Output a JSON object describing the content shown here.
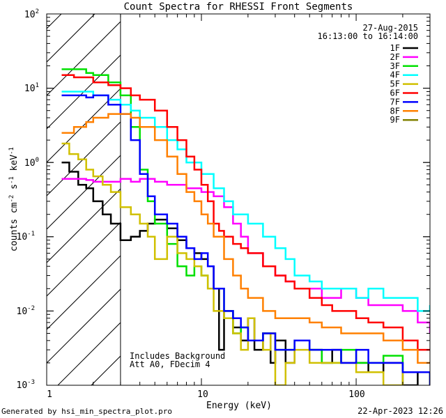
{
  "chart_data": {
    "type": "line",
    "title": "Count Spectra for RHESSI Front Segments",
    "xlabel": "Energy (keV)",
    "ylabel": "counts cm-2 s-1 keV-1",
    "xscale": "log",
    "yscale": "log",
    "xlim": [
      1,
      300
    ],
    "ylim": [
      0.001,
      100
    ],
    "x_tick_labels": [
      "1",
      "10",
      "100"
    ],
    "y_tick_labels": [
      "10-3",
      "10-2",
      "10-1",
      "100",
      "101",
      "102"
    ],
    "date": "27-Aug-2015",
    "time_range": "16:13:00 to 16:14:00",
    "annotations": [
      "Includes Background",
      "Att A0, FDecim 4"
    ],
    "shaded_region": [
      1,
      3
    ],
    "series": [
      {
        "name": "1F",
        "color": "#000000",
        "points": [
          [
            1.25,
            1.0
          ],
          [
            1.4,
            0.75
          ],
          [
            1.6,
            0.5
          ],
          [
            1.8,
            0.45
          ],
          [
            2.0,
            0.3
          ],
          [
            2.3,
            0.2
          ],
          [
            2.6,
            0.15
          ],
          [
            3.0,
            0.09
          ],
          [
            3.5,
            0.1
          ],
          [
            4.0,
            0.12
          ],
          [
            4.5,
            0.15
          ],
          [
            5.0,
            0.17
          ],
          [
            6.0,
            0.13
          ],
          [
            7.0,
            0.09
          ],
          [
            8.0,
            0.07
          ],
          [
            9.0,
            0.06
          ],
          [
            10.0,
            0.05
          ],
          [
            11.0,
            0.04
          ],
          [
            12.0,
            0.02
          ],
          [
            13.0,
            0.003
          ],
          [
            14.0,
            0.01
          ],
          [
            16.0,
            0.006
          ],
          [
            18.0,
            0.004
          ],
          [
            20.0,
            0.008
          ],
          [
            22.0,
            0.003
          ],
          [
            25.0,
            0.005
          ],
          [
            28.0,
            0.002
          ],
          [
            30.0,
            0.004
          ],
          [
            35.0,
            0.002
          ],
          [
            40.0,
            0.004
          ],
          [
            50.0,
            0.003
          ],
          [
            60.0,
            0.002
          ],
          [
            70.0,
            0.003
          ],
          [
            80.0,
            0.002
          ],
          [
            100.0,
            0.002
          ],
          [
            120.0,
            0.0015
          ],
          [
            150.0,
            0.002
          ],
          [
            200.0,
            0.001
          ],
          [
            250.0,
            0.0015
          ],
          [
            300.0,
            0.001
          ]
        ]
      },
      {
        "name": "2F",
        "color": "#ff00ff",
        "points": [
          [
            1.25,
            0.6
          ],
          [
            1.5,
            0.6
          ],
          [
            1.8,
            0.58
          ],
          [
            2.0,
            0.55
          ],
          [
            2.5,
            0.55
          ],
          [
            3.0,
            0.6
          ],
          [
            3.5,
            0.55
          ],
          [
            4.0,
            0.6
          ],
          [
            5.0,
            0.55
          ],
          [
            6.0,
            0.5
          ],
          [
            7.0,
            0.5
          ],
          [
            8.0,
            0.45
          ],
          [
            9.0,
            0.45
          ],
          [
            10.0,
            0.4
          ],
          [
            12.0,
            0.35
          ],
          [
            14.0,
            0.25
          ],
          [
            16.0,
            0.15
          ],
          [
            18.0,
            0.1
          ],
          [
            20.0,
            0.06
          ],
          [
            25.0,
            0.04
          ],
          [
            30.0,
            0.03
          ],
          [
            35.0,
            0.025
          ],
          [
            40.0,
            0.02
          ],
          [
            50.0,
            0.02
          ],
          [
            60.0,
            0.015
          ],
          [
            70.0,
            0.015
          ],
          [
            80.0,
            0.02
          ],
          [
            100.0,
            0.015
          ],
          [
            120.0,
            0.012
          ],
          [
            150.0,
            0.012
          ],
          [
            200.0,
            0.01
          ],
          [
            250.0,
            0.007
          ],
          [
            300.0,
            0.005
          ]
        ]
      },
      {
        "name": "3F",
        "color": "#00e000",
        "points": [
          [
            1.25,
            18.0
          ],
          [
            1.5,
            18.0
          ],
          [
            1.8,
            16.0
          ],
          [
            2.0,
            15.0
          ],
          [
            2.5,
            12.0
          ],
          [
            3.0,
            8.0
          ],
          [
            3.5,
            3.0
          ],
          [
            4.0,
            0.8
          ],
          [
            4.5,
            0.3
          ],
          [
            5.0,
            0.15
          ],
          [
            6.0,
            0.08
          ],
          [
            7.0,
            0.04
          ],
          [
            8.0,
            0.03
          ],
          [
            9.0,
            0.04
          ],
          [
            10.0,
            0.03
          ],
          [
            11.0,
            0.02
          ],
          [
            12.0,
            0.02
          ],
          [
            14.0,
            0.01
          ],
          [
            16.0,
            0.005
          ],
          [
            18.0,
            0.006
          ],
          [
            20.0,
            0.004
          ],
          [
            25.0,
            0.005
          ],
          [
            30.0,
            0.003
          ],
          [
            40.0,
            0.004
          ],
          [
            50.0,
            0.003
          ],
          [
            60.0,
            0.002
          ],
          [
            80.0,
            0.003
          ],
          [
            100.0,
            0.002
          ],
          [
            150.0,
            0.0025
          ],
          [
            200.0,
            0.0015
          ],
          [
            300.0,
            0.001
          ]
        ]
      },
      {
        "name": "4F",
        "color": "#00ffff",
        "points": [
          [
            1.25,
            9.0
          ],
          [
            1.5,
            9.0
          ],
          [
            2.0,
            8.0
          ],
          [
            2.5,
            7.0
          ],
          [
            3.0,
            6.0
          ],
          [
            3.5,
            5.0
          ],
          [
            4.0,
            4.0
          ],
          [
            5.0,
            3.0
          ],
          [
            6.0,
            2.0
          ],
          [
            7.0,
            1.5
          ],
          [
            8.0,
            1.0
          ],
          [
            10.0,
            0.7
          ],
          [
            12.0,
            0.45
          ],
          [
            14.0,
            0.3
          ],
          [
            16.0,
            0.2
          ],
          [
            20.0,
            0.15
          ],
          [
            25.0,
            0.1
          ],
          [
            30.0,
            0.07
          ],
          [
            35.0,
            0.05
          ],
          [
            40.0,
            0.03
          ],
          [
            50.0,
            0.025
          ],
          [
            60.0,
            0.02
          ],
          [
            70.0,
            0.02
          ],
          [
            80.0,
            0.02
          ],
          [
            100.0,
            0.015
          ],
          [
            120.0,
            0.02
          ],
          [
            150.0,
            0.015
          ],
          [
            200.0,
            0.015
          ],
          [
            250.0,
            0.01
          ],
          [
            300.0,
            0.012
          ]
        ]
      },
      {
        "name": "5F",
        "color": "#d0c000",
        "points": [
          [
            1.25,
            1.8
          ],
          [
            1.4,
            1.3
          ],
          [
            1.6,
            1.1
          ],
          [
            1.8,
            0.8
          ],
          [
            2.0,
            0.65
          ],
          [
            2.3,
            0.5
          ],
          [
            2.6,
            0.4
          ],
          [
            3.0,
            0.25
          ],
          [
            3.5,
            0.2
          ],
          [
            4.0,
            0.15
          ],
          [
            4.5,
            0.1
          ],
          [
            5.0,
            0.05
          ],
          [
            6.0,
            0.1
          ],
          [
            7.0,
            0.06
          ],
          [
            8.0,
            0.05
          ],
          [
            9.0,
            0.04
          ],
          [
            10.0,
            0.03
          ],
          [
            11.0,
            0.02
          ],
          [
            12.0,
            0.01
          ],
          [
            14.0,
            0.008
          ],
          [
            16.0,
            0.005
          ],
          [
            18.0,
            0.003
          ],
          [
            20.0,
            0.008
          ],
          [
            22.0,
            0.004
          ],
          [
            25.0,
            0.003
          ],
          [
            28.0,
            0.005
          ],
          [
            30.0,
            0.001
          ],
          [
            35.0,
            0.002
          ],
          [
            40.0,
            0.003
          ],
          [
            50.0,
            0.002
          ],
          [
            70.0,
            0.002
          ],
          [
            100.0,
            0.0015
          ],
          [
            150.0,
            0.001
          ],
          [
            200.0,
            0.0015
          ],
          [
            300.0,
            0.001
          ]
        ]
      },
      {
        "name": "6F",
        "color": "#ff0000",
        "points": [
          [
            1.25,
            15.0
          ],
          [
            1.5,
            14.0
          ],
          [
            2.0,
            12.0
          ],
          [
            2.5,
            11.0
          ],
          [
            3.0,
            10.0
          ],
          [
            3.5,
            8.0
          ],
          [
            4.0,
            7.0
          ],
          [
            5.0,
            5.0
          ],
          [
            6.0,
            3.0
          ],
          [
            7.0,
            2.0
          ],
          [
            8.0,
            1.2
          ],
          [
            9.0,
            0.8
          ],
          [
            10.0,
            0.5
          ],
          [
            11.0,
            0.3
          ],
          [
            12.0,
            0.15
          ],
          [
            13.0,
            0.12
          ],
          [
            14.0,
            0.1
          ],
          [
            16.0,
            0.08
          ],
          [
            18.0,
            0.07
          ],
          [
            20.0,
            0.06
          ],
          [
            25.0,
            0.04
          ],
          [
            30.0,
            0.03
          ],
          [
            35.0,
            0.025
          ],
          [
            40.0,
            0.02
          ],
          [
            50.0,
            0.015
          ],
          [
            60.0,
            0.012
          ],
          [
            70.0,
            0.01
          ],
          [
            80.0,
            0.01
          ],
          [
            100.0,
            0.008
          ],
          [
            120.0,
            0.007
          ],
          [
            150.0,
            0.006
          ],
          [
            200.0,
            0.004
          ],
          [
            250.0,
            0.003
          ],
          [
            300.0,
            0.003
          ]
        ]
      },
      {
        "name": "7F",
        "color": "#0000ff",
        "points": [
          [
            1.25,
            8.0
          ],
          [
            1.5,
            8.0
          ],
          [
            1.8,
            7.5
          ],
          [
            2.0,
            8.0
          ],
          [
            2.5,
            6.0
          ],
          [
            3.0,
            4.5
          ],
          [
            3.5,
            2.0
          ],
          [
            4.0,
            0.7
          ],
          [
            4.5,
            0.35
          ],
          [
            5.0,
            0.2
          ],
          [
            6.0,
            0.15
          ],
          [
            7.0,
            0.1
          ],
          [
            8.0,
            0.07
          ],
          [
            9.0,
            0.05
          ],
          [
            10.0,
            0.06
          ],
          [
            11.0,
            0.04
          ],
          [
            12.0,
            0.02
          ],
          [
            14.0,
            0.01
          ],
          [
            16.0,
            0.008
          ],
          [
            18.0,
            0.006
          ],
          [
            20.0,
            0.004
          ],
          [
            25.0,
            0.005
          ],
          [
            30.0,
            0.003
          ],
          [
            40.0,
            0.004
          ],
          [
            50.0,
            0.003
          ],
          [
            60.0,
            0.003
          ],
          [
            80.0,
            0.002
          ],
          [
            100.0,
            0.003
          ],
          [
            120.0,
            0.002
          ],
          [
            150.0,
            0.002
          ],
          [
            200.0,
            0.0015
          ],
          [
            300.0,
            0.001
          ]
        ]
      },
      {
        "name": "8F",
        "color": "#ff8000",
        "points": [
          [
            1.25,
            2.5
          ],
          [
            1.5,
            3.0
          ],
          [
            1.8,
            3.5
          ],
          [
            2.0,
            4.0
          ],
          [
            2.5,
            4.5
          ],
          [
            3.0,
            4.5
          ],
          [
            3.5,
            4.0
          ],
          [
            4.0,
            3.0
          ],
          [
            5.0,
            2.0
          ],
          [
            6.0,
            1.2
          ],
          [
            7.0,
            0.7
          ],
          [
            8.0,
            0.4
          ],
          [
            9.0,
            0.3
          ],
          [
            10.0,
            0.2
          ],
          [
            11.0,
            0.15
          ],
          [
            12.0,
            0.1
          ],
          [
            14.0,
            0.05
          ],
          [
            16.0,
            0.03
          ],
          [
            18.0,
            0.02
          ],
          [
            20.0,
            0.015
          ],
          [
            25.0,
            0.01
          ],
          [
            30.0,
            0.008
          ],
          [
            40.0,
            0.008
          ],
          [
            50.0,
            0.007
          ],
          [
            60.0,
            0.006
          ],
          [
            70.0,
            0.006
          ],
          [
            80.0,
            0.005
          ],
          [
            100.0,
            0.005
          ],
          [
            150.0,
            0.004
          ],
          [
            200.0,
            0.003
          ],
          [
            250.0,
            0.002
          ],
          [
            300.0,
            0.002
          ]
        ]
      },
      {
        "name": "9F",
        "color": "#808000",
        "points": []
      }
    ]
  },
  "footer": {
    "generated_by": "Generated by hsi_min_spectra_plot.pro",
    "timestamp": "22-Apr-2023 12:26"
  }
}
